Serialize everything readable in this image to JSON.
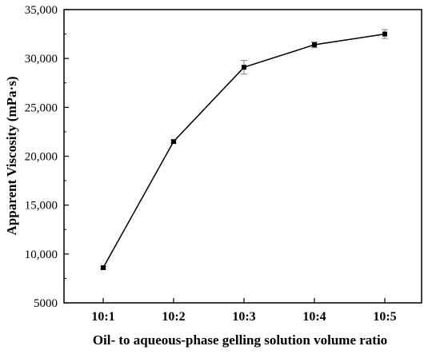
{
  "chart_data": {
    "type": "line",
    "title": "",
    "xlabel": "Oil- to aqueous-phase gelling solution volume ratio",
    "ylabel": "Apparent Viscosity (mPa·s)",
    "categories": [
      "10:1",
      "10:2",
      "10:3",
      "10:4",
      "10:5"
    ],
    "series": [
      {
        "values": [
          8600,
          21500,
          29100,
          31400,
          32500
        ],
        "errors": [
          120,
          150,
          700,
          300,
          450
        ]
      }
    ],
    "ylim": [
      5000,
      35000
    ],
    "yticks": [
      5000,
      10000,
      15000,
      20000,
      25000,
      30000,
      35000
    ],
    "ytick_labels": [
      "5000",
      "10,000",
      "15,000",
      "20,000",
      "25,000",
      "30,000",
      "35,000"
    ],
    "grid": false,
    "legend": "none",
    "colors": {
      "line": "#000000",
      "marker": "#000000",
      "errorbar": "#808080",
      "axis": "#000000"
    }
  }
}
